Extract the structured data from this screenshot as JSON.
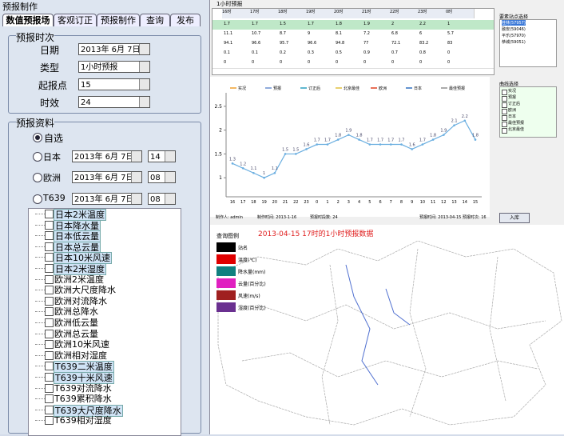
{
  "panel": {
    "title": "预报制作",
    "tabs": [
      "数值预报场",
      "客观订正",
      "预报制作",
      "查询",
      "发布"
    ],
    "time_group": {
      "title": "预报时次",
      "date_label": "日期",
      "date": "2013年 6月 7日",
      "type_label": "类型",
      "type": "1小时预报",
      "start_label": "起报点",
      "start": "15",
      "aging_label": "时效",
      "aging": "24"
    },
    "source_group": {
      "title": "预报资料",
      "custom": "自选",
      "options": [
        {
          "label": "日本",
          "date": "2013年 6月 7日",
          "hour": "14"
        },
        {
          "label": "欧洲",
          "date": "2013年 6月 7日",
          "hour": "08"
        },
        {
          "label": "T639",
          "date": "2013年 6月 7日",
          "hour": "08"
        }
      ]
    },
    "tree": [
      {
        "label": "日本2米温度",
        "selected": true
      },
      {
        "label": "日本降水量",
        "selected": true
      },
      {
        "label": "日本低云量",
        "selected": true
      },
      {
        "label": "日本总云量",
        "selected": true
      },
      {
        "label": "日本10米风速",
        "selected": true
      },
      {
        "label": "日本2米湿度",
        "selected": true
      },
      {
        "label": "欧洲2米温度",
        "selected": false
      },
      {
        "label": "欧洲大尺度降水",
        "selected": false
      },
      {
        "label": "欧洲对流降水",
        "selected": false
      },
      {
        "label": "欧洲总降水",
        "selected": false
      },
      {
        "label": "欧洲低云量",
        "selected": false
      },
      {
        "label": "欧洲总云量",
        "selected": false
      },
      {
        "label": "欧洲10米风速",
        "selected": false
      },
      {
        "label": "欧洲相对湿度",
        "selected": false
      },
      {
        "label": "T639二米温度",
        "selected": true
      },
      {
        "label": "T639十米风速",
        "selected": true
      },
      {
        "label": "T639对流降水",
        "selected": false
      },
      {
        "label": "T639累积降水",
        "selected": false
      },
      {
        "label": "T639大尺度降水",
        "selected": true
      },
      {
        "label": "T639相对湿度",
        "selected": false
      }
    ]
  },
  "window": {
    "title": "1小时预报",
    "table": {
      "header": [
        "16时",
        "17时",
        "18时",
        "19时",
        "20时",
        "21时",
        "22时",
        "23时",
        "0时"
      ],
      "rows": [
        [
          "1.7",
          "1.7",
          "1.5",
          "1.7",
          "1.8",
          "1.9",
          "2",
          "2.2",
          "1"
        ],
        [
          "11.1",
          "10.7",
          "8.7",
          "9",
          "8.1",
          "7.2",
          "6.8",
          "6",
          "5.7"
        ],
        [
          "94.1",
          "96.6",
          "95.7",
          "96.6",
          "94.8",
          "77",
          "72.1",
          "83.2",
          "83"
        ],
        [
          "0.1",
          "0.1",
          "0.2",
          "0.3",
          "0.5",
          "0.9",
          "0.7",
          "0.8",
          "0"
        ],
        [
          "0",
          "0",
          "0",
          "0",
          "0",
          "0",
          "0",
          "0",
          "0"
        ]
      ]
    },
    "station_title": "要素站点选择",
    "stations": [
      "桂林(57957)",
      "融安(59046)",
      "平乐(57970)",
      "恭城(59051)"
    ],
    "curve_title": "曲线选择",
    "curves": [
      "实况",
      "预报",
      "订正后",
      "欧洲",
      "日本",
      "最佳预报",
      "北京最佳"
    ],
    "footer": [
      "制作人: admin",
      "制作时间: 2013-1-16",
      "预报时段数: 24",
      "预报时间: 2013-04-15 预报时次: 16"
    ],
    "button": "入库"
  },
  "chart_data": {
    "type": "line",
    "legend": [
      {
        "name": "实况",
        "color": "#f0a030"
      },
      {
        "name": "预报",
        "color": "#6a8fd0"
      },
      {
        "name": "订正后",
        "color": "#2aa0c0"
      },
      {
        "name": "北京最佳",
        "color": "#e0c040"
      },
      {
        "name": "欧洲",
        "color": "#e04020"
      },
      {
        "name": "日本",
        "color": "#3070c0"
      },
      {
        "name": "最佳预报",
        "color": "#909090"
      }
    ],
    "categories": [
      "16",
      "17",
      "18",
      "19",
      "20",
      "21",
      "22",
      "23",
      "0",
      "1",
      "2",
      "3",
      "4",
      "5",
      "6",
      "7",
      "8",
      "9",
      "10",
      "11",
      "12",
      "13",
      "14",
      "15"
    ],
    "series": [
      {
        "color": "#6aaee0",
        "values": [
          1.3,
          1.2,
          1.1,
          1.0,
          1.1,
          1.5,
          1.5,
          1.6,
          1.7,
          1.7,
          1.8,
          1.9,
          1.8,
          1.7,
          1.7,
          1.7,
          1.7,
          1.6,
          1.7,
          1.8,
          1.9,
          2.1,
          2.2,
          1.8
        ]
      }
    ],
    "ylim": [
      0.6,
      2.7
    ],
    "yticks": [
      1,
      1.5,
      2,
      2.5
    ]
  },
  "map": {
    "legend_title": "查询图例",
    "title": "2013-04-15 17时的1小时预报数据",
    "legend": [
      {
        "label": "站名",
        "color": "#000000"
      },
      {
        "label": "温度(℃)",
        "color": "#e00000"
      },
      {
        "label": "降水量(mm)",
        "color": "#108080"
      },
      {
        "label": "云量(百分比)",
        "color": "#e020c0"
      },
      {
        "label": "风速(m/s)",
        "color": "#a02020"
      },
      {
        "label": "湿度(百分比)",
        "color": "#6a3090"
      }
    ]
  }
}
